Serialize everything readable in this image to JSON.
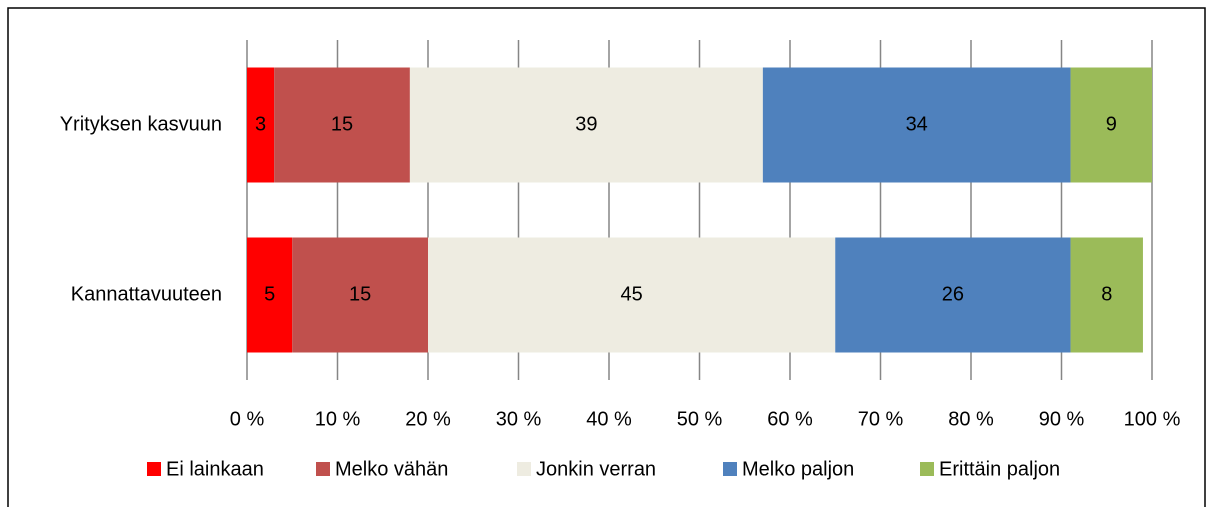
{
  "chart_data": {
    "type": "bar",
    "orientation": "horizontal",
    "stacked": true,
    "categories": [
      "Yrityksen kasvuun",
      "Kannattavuuteen"
    ],
    "series": [
      {
        "name": "Ei lainkaan",
        "color": "#ff0000",
        "values": [
          3,
          5
        ]
      },
      {
        "name": "Melko vähän",
        "color": "#c0504d",
        "values": [
          15,
          15
        ]
      },
      {
        "name": "Jonkin verran",
        "color": "#eeece1",
        "values": [
          39,
          45
        ]
      },
      {
        "name": "Melko paljon",
        "color": "#4f81bd",
        "values": [
          34,
          26
        ]
      },
      {
        "name": "Erittäin paljon",
        "color": "#9bbb59",
        "values": [
          9,
          8
        ]
      }
    ],
    "xlim": [
      0,
      100
    ],
    "xticks": [
      {
        "value": 0,
        "label": "0 %"
      },
      {
        "value": 10,
        "label": "10 %"
      },
      {
        "value": 20,
        "label": "20 %"
      },
      {
        "value": 30,
        "label": "30 %"
      },
      {
        "value": 40,
        "label": "40 %"
      },
      {
        "value": 50,
        "label": "50 %"
      },
      {
        "value": 60,
        "label": "60 %"
      },
      {
        "value": 70,
        "label": "70 %"
      },
      {
        "value": 80,
        "label": "80 %"
      },
      {
        "value": 90,
        "label": "90 %"
      },
      {
        "value": 100,
        "label": "100 %"
      }
    ],
    "grid": true,
    "legend": "bottom"
  }
}
